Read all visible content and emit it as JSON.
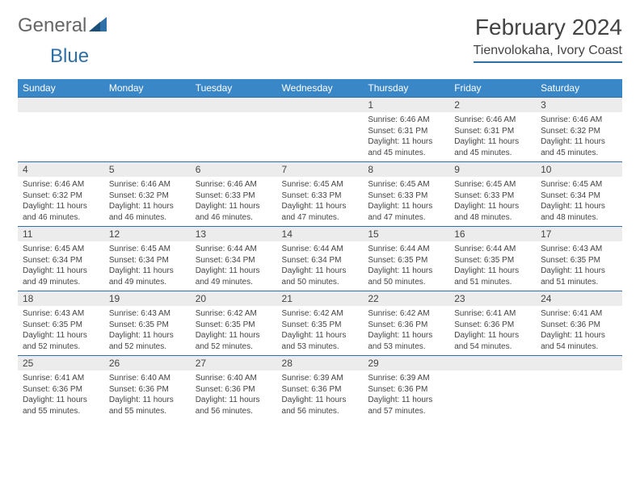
{
  "brand": {
    "part1": "General",
    "part2": "Blue"
  },
  "title": "February 2024",
  "location": "Tienvolokaha, Ivory Coast",
  "colors": {
    "header_bg": "#3a87c8",
    "header_fg": "#ffffff",
    "rule": "#2f6fa8",
    "daynum_bg": "#ececec"
  },
  "weekdays": [
    "Sunday",
    "Monday",
    "Tuesday",
    "Wednesday",
    "Thursday",
    "Friday",
    "Saturday"
  ],
  "weeks": [
    [
      null,
      null,
      null,
      null,
      {
        "n": "1",
        "sr": "Sunrise: 6:46 AM",
        "ss": "Sunset: 6:31 PM",
        "d1": "Daylight: 11 hours",
        "d2": "and 45 minutes."
      },
      {
        "n": "2",
        "sr": "Sunrise: 6:46 AM",
        "ss": "Sunset: 6:31 PM",
        "d1": "Daylight: 11 hours",
        "d2": "and 45 minutes."
      },
      {
        "n": "3",
        "sr": "Sunrise: 6:46 AM",
        "ss": "Sunset: 6:32 PM",
        "d1": "Daylight: 11 hours",
        "d2": "and 45 minutes."
      }
    ],
    [
      {
        "n": "4",
        "sr": "Sunrise: 6:46 AM",
        "ss": "Sunset: 6:32 PM",
        "d1": "Daylight: 11 hours",
        "d2": "and 46 minutes."
      },
      {
        "n": "5",
        "sr": "Sunrise: 6:46 AM",
        "ss": "Sunset: 6:32 PM",
        "d1": "Daylight: 11 hours",
        "d2": "and 46 minutes."
      },
      {
        "n": "6",
        "sr": "Sunrise: 6:46 AM",
        "ss": "Sunset: 6:33 PM",
        "d1": "Daylight: 11 hours",
        "d2": "and 46 minutes."
      },
      {
        "n": "7",
        "sr": "Sunrise: 6:45 AM",
        "ss": "Sunset: 6:33 PM",
        "d1": "Daylight: 11 hours",
        "d2": "and 47 minutes."
      },
      {
        "n": "8",
        "sr": "Sunrise: 6:45 AM",
        "ss": "Sunset: 6:33 PM",
        "d1": "Daylight: 11 hours",
        "d2": "and 47 minutes."
      },
      {
        "n": "9",
        "sr": "Sunrise: 6:45 AM",
        "ss": "Sunset: 6:33 PM",
        "d1": "Daylight: 11 hours",
        "d2": "and 48 minutes."
      },
      {
        "n": "10",
        "sr": "Sunrise: 6:45 AM",
        "ss": "Sunset: 6:34 PM",
        "d1": "Daylight: 11 hours",
        "d2": "and 48 minutes."
      }
    ],
    [
      {
        "n": "11",
        "sr": "Sunrise: 6:45 AM",
        "ss": "Sunset: 6:34 PM",
        "d1": "Daylight: 11 hours",
        "d2": "and 49 minutes."
      },
      {
        "n": "12",
        "sr": "Sunrise: 6:45 AM",
        "ss": "Sunset: 6:34 PM",
        "d1": "Daylight: 11 hours",
        "d2": "and 49 minutes."
      },
      {
        "n": "13",
        "sr": "Sunrise: 6:44 AM",
        "ss": "Sunset: 6:34 PM",
        "d1": "Daylight: 11 hours",
        "d2": "and 49 minutes."
      },
      {
        "n": "14",
        "sr": "Sunrise: 6:44 AM",
        "ss": "Sunset: 6:34 PM",
        "d1": "Daylight: 11 hours",
        "d2": "and 50 minutes."
      },
      {
        "n": "15",
        "sr": "Sunrise: 6:44 AM",
        "ss": "Sunset: 6:35 PM",
        "d1": "Daylight: 11 hours",
        "d2": "and 50 minutes."
      },
      {
        "n": "16",
        "sr": "Sunrise: 6:44 AM",
        "ss": "Sunset: 6:35 PM",
        "d1": "Daylight: 11 hours",
        "d2": "and 51 minutes."
      },
      {
        "n": "17",
        "sr": "Sunrise: 6:43 AM",
        "ss": "Sunset: 6:35 PM",
        "d1": "Daylight: 11 hours",
        "d2": "and 51 minutes."
      }
    ],
    [
      {
        "n": "18",
        "sr": "Sunrise: 6:43 AM",
        "ss": "Sunset: 6:35 PM",
        "d1": "Daylight: 11 hours",
        "d2": "and 52 minutes."
      },
      {
        "n": "19",
        "sr": "Sunrise: 6:43 AM",
        "ss": "Sunset: 6:35 PM",
        "d1": "Daylight: 11 hours",
        "d2": "and 52 minutes."
      },
      {
        "n": "20",
        "sr": "Sunrise: 6:42 AM",
        "ss": "Sunset: 6:35 PM",
        "d1": "Daylight: 11 hours",
        "d2": "and 52 minutes."
      },
      {
        "n": "21",
        "sr": "Sunrise: 6:42 AM",
        "ss": "Sunset: 6:35 PM",
        "d1": "Daylight: 11 hours",
        "d2": "and 53 minutes."
      },
      {
        "n": "22",
        "sr": "Sunrise: 6:42 AM",
        "ss": "Sunset: 6:36 PM",
        "d1": "Daylight: 11 hours",
        "d2": "and 53 minutes."
      },
      {
        "n": "23",
        "sr": "Sunrise: 6:41 AM",
        "ss": "Sunset: 6:36 PM",
        "d1": "Daylight: 11 hours",
        "d2": "and 54 minutes."
      },
      {
        "n": "24",
        "sr": "Sunrise: 6:41 AM",
        "ss": "Sunset: 6:36 PM",
        "d1": "Daylight: 11 hours",
        "d2": "and 54 minutes."
      }
    ],
    [
      {
        "n": "25",
        "sr": "Sunrise: 6:41 AM",
        "ss": "Sunset: 6:36 PM",
        "d1": "Daylight: 11 hours",
        "d2": "and 55 minutes."
      },
      {
        "n": "26",
        "sr": "Sunrise: 6:40 AM",
        "ss": "Sunset: 6:36 PM",
        "d1": "Daylight: 11 hours",
        "d2": "and 55 minutes."
      },
      {
        "n": "27",
        "sr": "Sunrise: 6:40 AM",
        "ss": "Sunset: 6:36 PM",
        "d1": "Daylight: 11 hours",
        "d2": "and 56 minutes."
      },
      {
        "n": "28",
        "sr": "Sunrise: 6:39 AM",
        "ss": "Sunset: 6:36 PM",
        "d1": "Daylight: 11 hours",
        "d2": "and 56 minutes."
      },
      {
        "n": "29",
        "sr": "Sunrise: 6:39 AM",
        "ss": "Sunset: 6:36 PM",
        "d1": "Daylight: 11 hours",
        "d2": "and 57 minutes."
      },
      null,
      null
    ]
  ]
}
